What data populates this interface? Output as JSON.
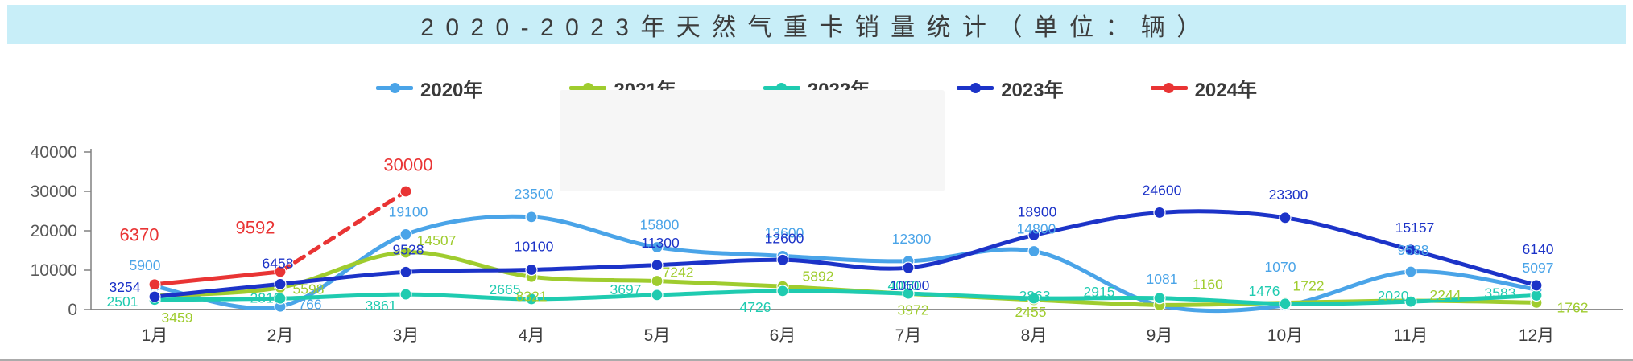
{
  "title": {
    "text": "2020-2023年天然气重卡销量统计（单位：辆）"
  },
  "chart_data": {
    "type": "line",
    "title": "2020-2023年天然气重卡销量统计（单位：辆）",
    "categories": [
      "1月",
      "2月",
      "3月",
      "4月",
      "5月",
      "6月",
      "7月",
      "8月",
      "9月",
      "10月",
      "11月",
      "12月"
    ],
    "y_axis": {
      "ticks": [
        0,
        10000,
        20000,
        30000,
        40000
      ],
      "ylim": [
        0,
        40000
      ]
    },
    "grid": false,
    "legend_position": "top",
    "series": [
      {
        "name": "2020年",
        "color": "#4aa4e8",
        "smooth": true,
        "values": [
          5900,
          766,
          19100,
          23500,
          15800,
          13600,
          12300,
          14800,
          1081,
          1070,
          9588,
          5097
        ],
        "label_offsets": [
          [
            -12,
            -26
          ],
          [
            37,
            -3
          ],
          [
            3,
            -28
          ],
          [
            3,
            -29
          ],
          [
            3,
            -28
          ],
          [
            2,
            -29
          ],
          [
            4,
            -28
          ],
          [
            3,
            -28
          ],
          [
            3,
            -33
          ],
          [
            -6,
            -48
          ],
          [
            3,
            -27
          ],
          [
            2,
            -27
          ]
        ]
      },
      {
        "name": "2021年",
        "color": "#9fcc2e",
        "smooth": true,
        "values": [
          3459,
          5598,
          14507,
          8321,
          7242,
          5892,
          3972,
          2455,
          1160,
          1722,
          2244,
          1762
        ],
        "label_offsets": [
          [
            28,
            27
          ],
          [
            35,
            2
          ],
          [
            38,
            -15
          ],
          [
            0,
            24
          ],
          [
            26,
            -11
          ],
          [
            44,
            -13
          ],
          [
            6,
            20
          ],
          [
            -4,
            15
          ],
          [
            60,
            -26
          ],
          [
            29,
            -21
          ],
          [
            43,
            -7
          ],
          [
            45,
            6
          ]
        ]
      },
      {
        "name": "2022年",
        "color": "#1fcbb0",
        "smooth": true,
        "values": [
          2501,
          2819,
          3861,
          2665,
          3697,
          4726,
          4060,
          2863,
          2915,
          1476,
          2020,
          3583
        ],
        "label_offsets": [
          [
            -40,
            2
          ],
          [
            -18,
            -1
          ],
          [
            -31,
            14
          ],
          [
            -33,
            -12
          ],
          [
            -39,
            -7
          ],
          [
            -34,
            20
          ],
          [
            -6,
            -10
          ],
          [
            1,
            -3
          ],
          [
            -75,
            -8
          ],
          [
            -26,
            -16
          ],
          [
            -22,
            -7
          ],
          [
            -45,
            -3
          ]
        ]
      },
      {
        "name": "2023年",
        "color": "#1c33c8",
        "smooth": true,
        "values": [
          3254,
          6458,
          9528,
          10100,
          11300,
          12600,
          10600,
          18900,
          24600,
          23300,
          15157,
          6140
        ],
        "label_offsets": [
          [
            -37,
            -12
          ],
          [
            -3,
            -26
          ],
          [
            3,
            -28
          ],
          [
            3,
            -29
          ],
          [
            4,
            -28
          ],
          [
            2,
            -27
          ],
          [
            2,
            22
          ],
          [
            4,
            -29
          ],
          [
            3,
            -28
          ],
          [
            4,
            -29
          ],
          [
            5,
            -28
          ],
          [
            2,
            -45
          ]
        ]
      },
      {
        "name": "2024年",
        "color": "#e93434",
        "smooth": false,
        "straight": true,
        "dashed_from": 1,
        "values": [
          6370,
          9592,
          30000,
          null,
          null,
          null,
          null,
          null,
          null,
          null,
          null,
          null
        ],
        "label_offsets": [
          [
            -19,
            -62
          ],
          [
            -31,
            -55
          ],
          [
            3,
            -33
          ],
          null,
          null,
          null,
          null,
          null,
          null,
          null,
          null,
          null
        ]
      }
    ]
  }
}
